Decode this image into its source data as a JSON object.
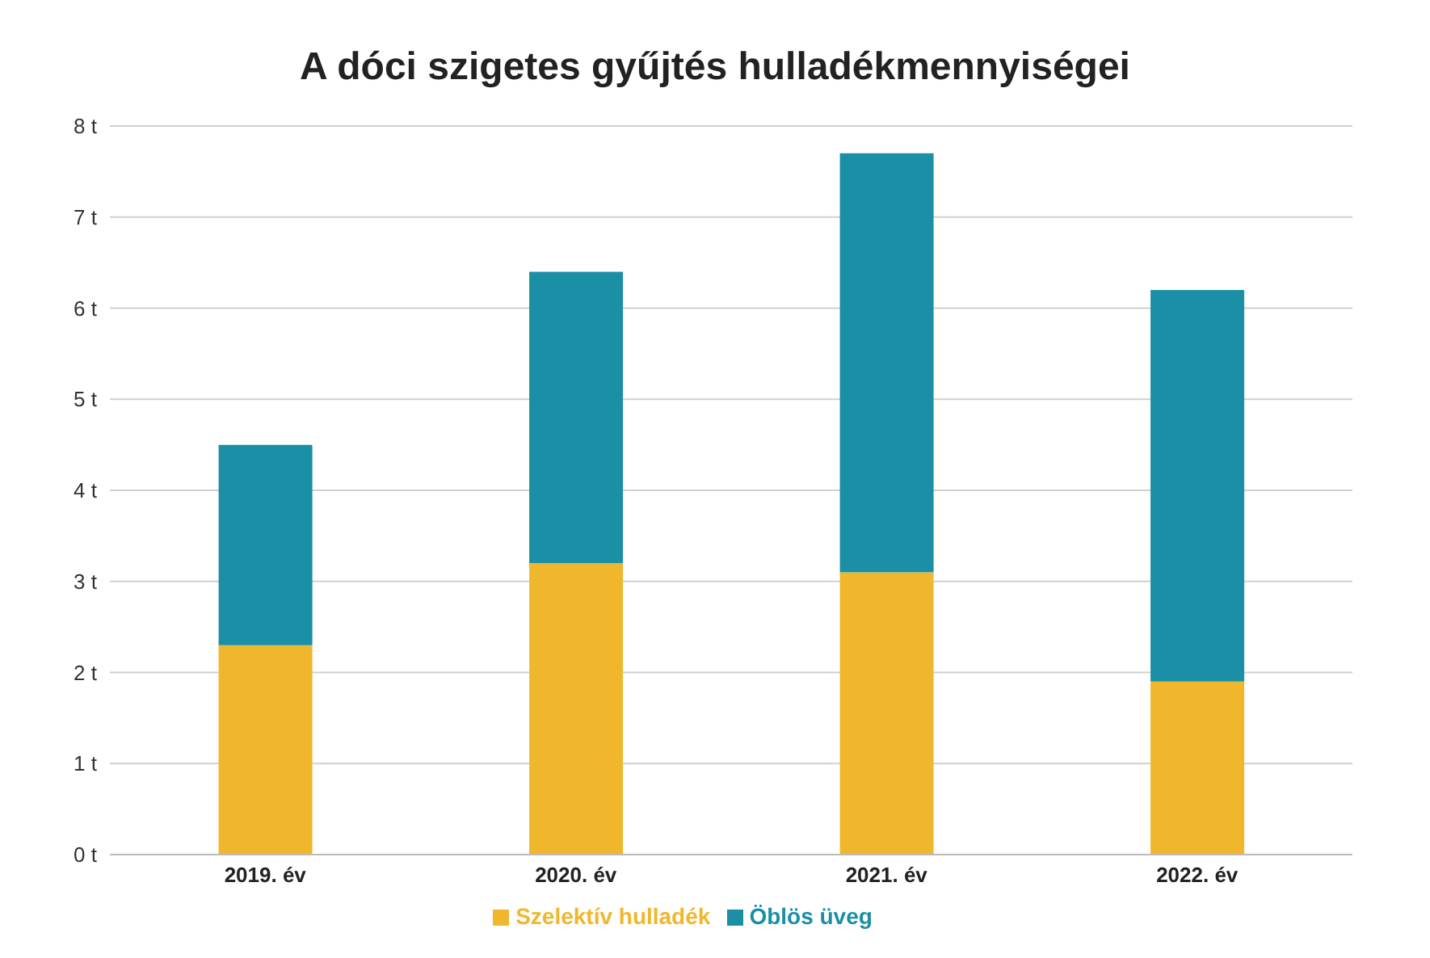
{
  "chart_data": {
    "type": "bar",
    "title": "A dóci szigetes gyűjtés hulladékmennyiségei",
    "categories": [
      "2019. év",
      "2020. év",
      "2021. év",
      "2022. év"
    ],
    "stacked": true,
    "series": [
      {
        "name": "Szelektív hulladék",
        "color": "#f0b72c",
        "values": [
          2.3,
          3.2,
          3.1,
          1.9
        ]
      },
      {
        "name": "Öblös üveg",
        "color": "#1a8fa5",
        "values": [
          2.2,
          3.2,
          4.6,
          4.3
        ]
      }
    ],
    "ylim": [
      0,
      8
    ],
    "yticks": [
      {
        "value": 0,
        "label": "0 t"
      },
      {
        "value": 1,
        "label": "1 t"
      },
      {
        "value": 2,
        "label": "2 t"
      },
      {
        "value": 3,
        "label": "3 t"
      },
      {
        "value": 4,
        "label": "4 t"
      },
      {
        "value": 5,
        "label": "5 t"
      },
      {
        "value": 6,
        "label": "6 t"
      },
      {
        "value": 7,
        "label": "7 t"
      },
      {
        "value": 8,
        "label": "8 t"
      }
    ],
    "grid": "y",
    "legend": "bottom"
  }
}
